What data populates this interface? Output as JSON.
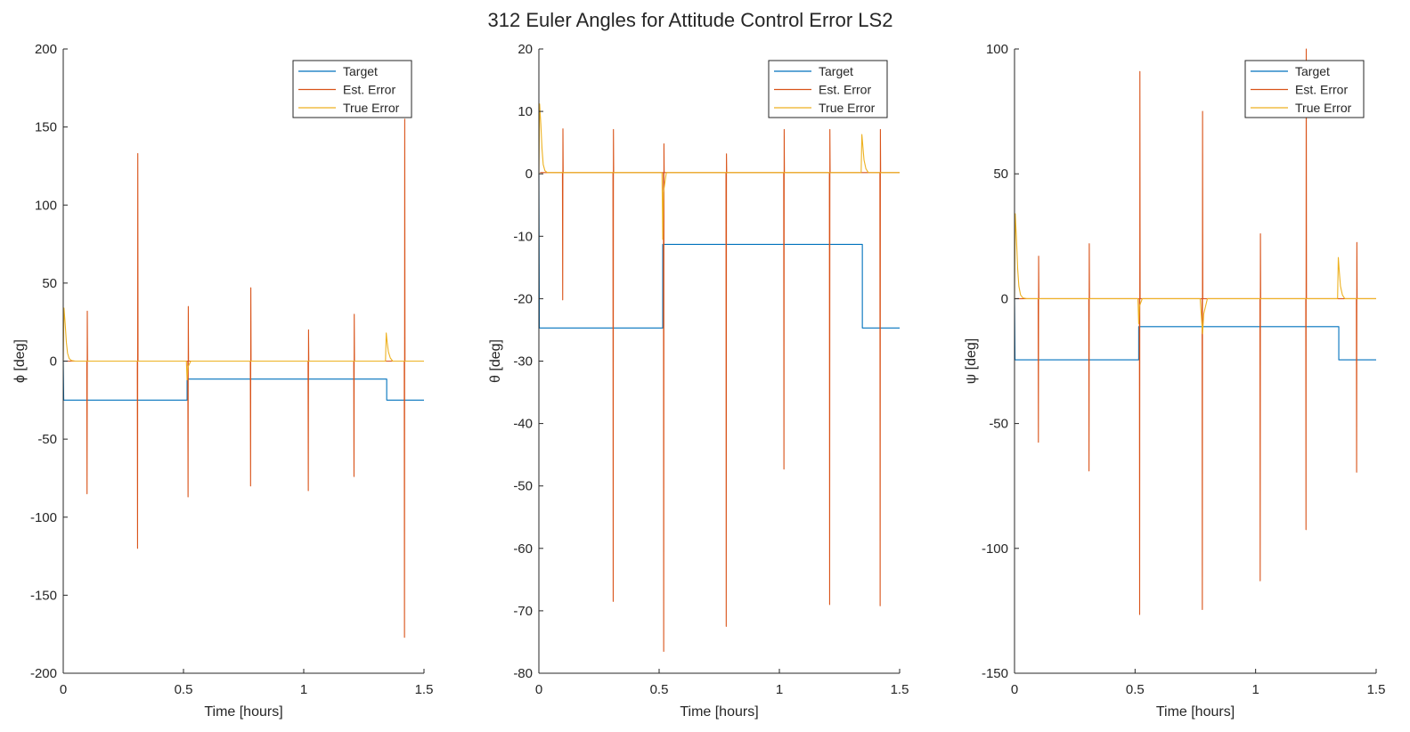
{
  "figure": {
    "title": "312 Euler Angles for Attitude Control Error LS2"
  },
  "colors": {
    "target": "#0072BD",
    "est_error": "#D95319",
    "true_error": "#EDB120",
    "axis": "#262626"
  },
  "chart_data": [
    {
      "type": "line",
      "xlabel": "Time [hours]",
      "ylabel": "ϕ [deg]",
      "xlim": [
        0,
        1.5
      ],
      "ylim": [
        -200,
        200
      ],
      "xticks": [
        0,
        0.5,
        1,
        1.5
      ],
      "xtick_labels": [
        "0",
        "0.5",
        "1",
        "1.5"
      ],
      "yticks": [
        -200,
        -150,
        -100,
        -50,
        0,
        50,
        100,
        150,
        200
      ],
      "ytick_labels": [
        "-200",
        "-150",
        "-100",
        "-50",
        "0",
        "50",
        "100",
        "150",
        "200"
      ],
      "grid": false,
      "legend_position": "top-right",
      "series": [
        {
          "name": "Target",
          "color_key": "target",
          "x": [
            0,
            0.002,
            0.515,
            0.515,
            1.345,
            1.345,
            1.5
          ],
          "y": [
            0,
            -25,
            -25,
            -11.5,
            -11.5,
            -25,
            -25
          ]
        },
        {
          "name": "Est. Error",
          "color_key": "est_error",
          "x": [
            0.005,
            0.098,
            0.099,
            0.1,
            0.101,
            0.102,
            0.308,
            0.309,
            0.31,
            0.311,
            0.312,
            0.518,
            0.519,
            0.52,
            0.521,
            0.522,
            0.778,
            0.779,
            0.78,
            0.781,
            0.782,
            1.018,
            1.019,
            1.02,
            1.021,
            1.022,
            1.208,
            1.209,
            1.21,
            1.211,
            1.212,
            1.418,
            1.419,
            1.42,
            1.421,
            1.422,
            1.5
          ],
          "y": [
            0,
            0,
            -85,
            32,
            0,
            0,
            0,
            -120,
            133,
            0,
            0,
            0,
            -87,
            35,
            0,
            0,
            0,
            -80,
            47,
            0,
            0,
            0,
            -83,
            20,
            0,
            0,
            0,
            -74,
            30,
            0,
            0,
            0,
            -177,
            155,
            0,
            0,
            0
          ]
        },
        {
          "name": "True Error",
          "color_key": "true_error",
          "x": [
            0,
            0.003,
            0.008,
            0.013,
            0.018,
            0.025,
            0.035,
            0.05,
            0.5,
            0.512,
            0.515,
            0.518,
            0.53,
            0.6,
            1.34,
            1.343,
            1.347,
            1.352,
            1.36,
            1.37,
            1.5
          ],
          "y": [
            0,
            34,
            24,
            12,
            5,
            1.5,
            0.3,
            0,
            0,
            0,
            -12,
            -4,
            0,
            0,
            0,
            18,
            12,
            6,
            2,
            0,
            0
          ]
        }
      ]
    },
    {
      "type": "line",
      "xlabel": "Time [hours]",
      "ylabel": "θ [deg]",
      "xlim": [
        0,
        1.5
      ],
      "ylim": [
        -80,
        20
      ],
      "xticks": [
        0,
        0.5,
        1,
        1.5
      ],
      "xtick_labels": [
        "0",
        "0.5",
        "1",
        "1.5"
      ],
      "yticks": [
        -80,
        -70,
        -60,
        -50,
        -40,
        -30,
        -20,
        -10,
        0,
        10,
        20
      ],
      "ytick_labels": [
        "-80",
        "-70",
        "-60",
        "-50",
        "-40",
        "-30",
        "-20",
        "-10",
        "0",
        "10",
        "20"
      ],
      "grid": false,
      "legend_position": "top-right",
      "series": [
        {
          "name": "Target",
          "color_key": "target",
          "x": [
            0,
            0.002,
            0.515,
            0.515,
            1.345,
            1.345,
            1.5
          ],
          "y": [
            0,
            -24.7,
            -24.7,
            -11.3,
            -11.3,
            -24.7,
            -24.7
          ]
        },
        {
          "name": "Est. Error",
          "color_key": "est_error",
          "x": [
            0.005,
            0.098,
            0.099,
            0.1,
            0.101,
            0.102,
            0.308,
            0.309,
            0.31,
            0.311,
            0.312,
            0.518,
            0.519,
            0.52,
            0.521,
            0.522,
            0.778,
            0.779,
            0.78,
            0.781,
            0.782,
            1.018,
            1.019,
            1.02,
            1.021,
            1.022,
            1.208,
            1.209,
            1.21,
            1.211,
            1.212,
            1.418,
            1.419,
            1.42,
            1.421,
            1.422,
            1.5
          ],
          "y": [
            0.2,
            0.2,
            -20.2,
            7.2,
            0.2,
            0.2,
            0.2,
            -68.5,
            7.1,
            0.2,
            0.2,
            0.2,
            -76.5,
            4.8,
            0.2,
            0.2,
            0.2,
            -72.5,
            3.2,
            0.2,
            0.2,
            0.2,
            -47.3,
            7.1,
            0.2,
            0.2,
            0.2,
            -69,
            7.1,
            0.2,
            0.2,
            0.2,
            -69.2,
            7.1,
            0.2,
            0.2,
            0.2
          ]
        },
        {
          "name": "True Error",
          "color_key": "true_error",
          "x": [
            0,
            0.003,
            0.008,
            0.013,
            0.018,
            0.025,
            0.035,
            0.05,
            0.5,
            0.512,
            0.515,
            0.518,
            0.53,
            0.6,
            1.34,
            1.343,
            1.347,
            1.352,
            1.36,
            1.37,
            1.5
          ],
          "y": [
            0,
            11.2,
            8,
            4,
            1.5,
            0.5,
            0.2,
            0.2,
            0.2,
            0.2,
            -10.5,
            -3,
            0.2,
            0.2,
            0.2,
            6.3,
            4.5,
            2.2,
            0.8,
            0.2,
            0.2
          ]
        }
      ]
    },
    {
      "type": "line",
      "xlabel": "Time [hours]",
      "ylabel": "ψ [deg]",
      "xlim": [
        0,
        1.5
      ],
      "ylim": [
        -150,
        100
      ],
      "xticks": [
        0,
        0.5,
        1,
        1.5
      ],
      "xtick_labels": [
        "0",
        "0.5",
        "1",
        "1.5"
      ],
      "yticks": [
        -150,
        -100,
        -50,
        0,
        50,
        100
      ],
      "ytick_labels": [
        "-150",
        "-100",
        "-50",
        "0",
        "50",
        "100"
      ],
      "grid": false,
      "legend_position": "top-right",
      "series": [
        {
          "name": "Target",
          "color_key": "target",
          "x": [
            0,
            0.002,
            0.515,
            0.515,
            1.345,
            1.345,
            1.5
          ],
          "y": [
            0,
            -24.5,
            -24.5,
            -11.2,
            -11.2,
            -24.5,
            -24.5
          ]
        },
        {
          "name": "Est. Error",
          "color_key": "est_error",
          "x": [
            0.005,
            0.098,
            0.099,
            0.1,
            0.101,
            0.102,
            0.308,
            0.309,
            0.31,
            0.311,
            0.312,
            0.518,
            0.519,
            0.52,
            0.521,
            0.522,
            0.778,
            0.779,
            0.78,
            0.781,
            0.782,
            1.018,
            1.019,
            1.02,
            1.021,
            1.022,
            1.208,
            1.209,
            1.21,
            1.211,
            1.212,
            1.418,
            1.419,
            1.42,
            1.421,
            1.422,
            1.5
          ],
          "y": [
            0,
            0,
            -57.5,
            17,
            0,
            0,
            0,
            -69,
            22,
            0,
            0,
            0,
            -126.5,
            91,
            0,
            0,
            0,
            -124.5,
            75,
            0,
            0,
            0,
            -113,
            26,
            0,
            0,
            0,
            -92.5,
            100,
            0,
            0,
            0,
            -69.5,
            22.5,
            0,
            0,
            0
          ]
        },
        {
          "name": "True Error",
          "color_key": "true_error",
          "x": [
            0,
            0.003,
            0.008,
            0.013,
            0.018,
            0.025,
            0.035,
            0.05,
            0.5,
            0.512,
            0.515,
            0.518,
            0.53,
            0.6,
            0.77,
            0.78,
            0.785,
            0.8,
            1.34,
            1.343,
            1.347,
            1.352,
            1.36,
            1.37,
            1.5
          ],
          "y": [
            0,
            34,
            24,
            12,
            5,
            1.5,
            0.3,
            0,
            0,
            0,
            -10,
            -3,
            0,
            0,
            0,
            -14,
            -6,
            0,
            0,
            16.5,
            11,
            5,
            1.5,
            0,
            0
          ]
        }
      ]
    }
  ]
}
